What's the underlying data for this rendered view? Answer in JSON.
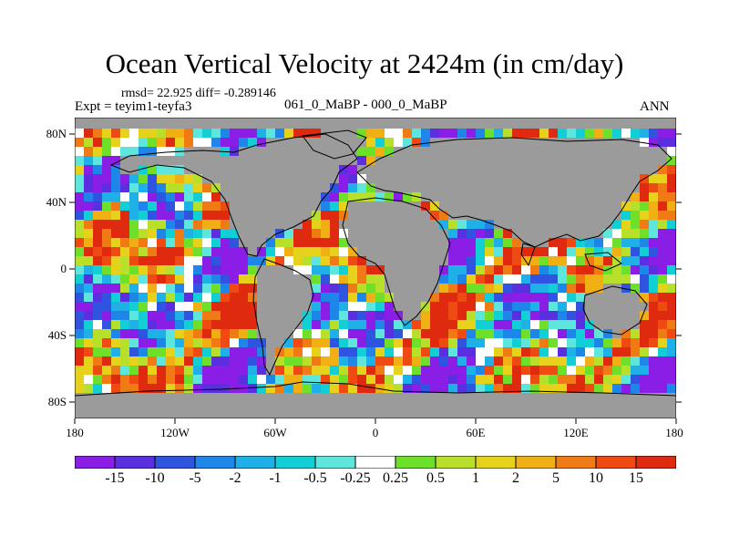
{
  "title": "Ocean Vertical Velocity at 2424m (in cm/day)",
  "stats": "rmsd= 22.925 diff= -0.289146",
  "expt": "Expt = teyim1-teyfa3",
  "cases": "061_0_MaBP - 000_0_MaBP",
  "season": "ANN",
  "lat_labels": [
    "80N",
    "40N",
    "0",
    "40S",
    "80S"
  ],
  "lon_labels": [
    "180",
    "120W",
    "60W",
    "0",
    "60E",
    "120E",
    "180"
  ],
  "colorbar": {
    "labels": [
      "-15",
      "-10",
      "-5",
      "-2",
      "-1",
      "-0.5",
      "-0.25",
      "0.25",
      "0.5",
      "1",
      "2",
      "5",
      "10",
      "15"
    ],
    "colors": [
      "#8a1ee6",
      "#5a2fe0",
      "#2f55e0",
      "#1e86e8",
      "#1eb0e6",
      "#12cfd6",
      "#5fe6dc",
      "#ffffff",
      "#6ee02a",
      "#b8e02a",
      "#e6d21a",
      "#f0b014",
      "#f07a14",
      "#ee4a12",
      "#e02a10"
    ]
  },
  "colors": {
    "land": "#9b9b9b",
    "coast": "#000000"
  }
}
